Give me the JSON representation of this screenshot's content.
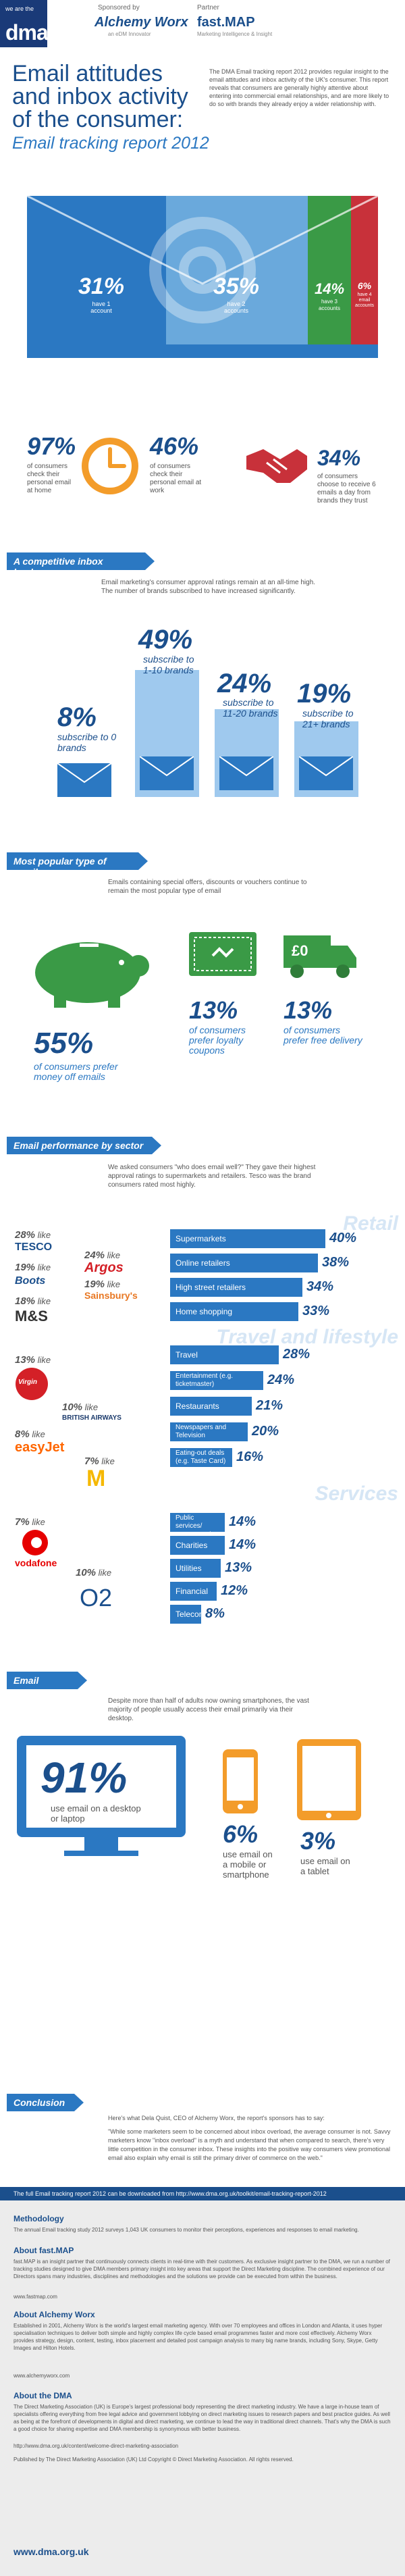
{
  "header": {
    "logo_small": "we are the",
    "logo_big": "dma",
    "sponsored_by": "Sponsored by",
    "sponsor_name": "Alchemy Worx",
    "sponsor_sub": "an eDM Innovator",
    "partner_label": "Partner",
    "partner_name": "fast.MAP",
    "partner_sub": "Marketing Intelligence & Insight"
  },
  "title": {
    "line1": "Email attitudes and inbox activity of the consumer:",
    "line2": "Email tracking report 2012",
    "intro": "The DMA Email tracking report 2012 provides regular insight to the email attitudes and inbox activity of the UK's consumer. This report reveals that consumers are generally highly attentive about entering into commercial email relationships, and are more likely to do so with brands they already enjoy a wider relationship with."
  },
  "accounts": {
    "a1_pct": "31%",
    "a1_label": "have 1 account",
    "a2_pct": "35%",
    "a2_label": "have 2 accounts",
    "a3_pct": "14%",
    "a3_label": "have 3 accounts",
    "a4_pct": "6%",
    "a4_label": "have 4 email accounts",
    "colors": {
      "blue": "#2b78c2",
      "light": "#6aa9dc",
      "green": "#3a9a46",
      "red": "#c8313a"
    }
  },
  "habits": {
    "s1_pct": "97%",
    "s1_label": "of consumers check their personal email at home",
    "s2_pct": "46%",
    "s2_label": "of consumers check their personal email at work",
    "s3_pct": "34%",
    "s3_label": "of consumers choose to receive 6 emails a day from brands they trust"
  },
  "inbox": {
    "heading": "A competitive inbox landscape",
    "intro": "Email marketing's consumer approval ratings remain at an all-time high. The number of brands subscribed to have increased significantly.",
    "b0_pct": "8%",
    "b0_label": "subscribe to 0 brands",
    "b1_pct": "49%",
    "b1_label": "subscribe to 1-10 brands",
    "b2_pct": "24%",
    "b2_label": "subscribe to 11-20 brands",
    "b3_pct": "19%",
    "b3_label": "subscribe to 21+ brands"
  },
  "popular": {
    "heading": "Most popular type of emails",
    "intro": "Emails containing special offers, discounts or vouchers continue to remain the most popular type of email",
    "money_pct": "55%",
    "money_label": "of consumers prefer money off emails",
    "loyalty_pct": "13%",
    "loyalty_label": "of consumers prefer loyalty coupons",
    "delivery_pct": "13%",
    "delivery_label": "of consumers prefer free delivery",
    "pound_icon": "£0"
  },
  "sector": {
    "heading": "Email performance by sector",
    "intro": "We asked consumers \"who does email well?\" They gave their highest approval ratings to supermarkets and retailers. Tesco was the brand consumers rated most highly.",
    "retail_title": "Retail",
    "travel_title": "Travel and lifestyle",
    "services_title": "Services",
    "retail_bars": [
      {
        "label": "Supermarkets",
        "pct": "40%"
      },
      {
        "label": "Online retailers",
        "pct": "38%"
      },
      {
        "label": "High street retailers",
        "pct": "34%"
      },
      {
        "label": "Home shopping",
        "pct": "33%"
      }
    ],
    "travel_bars": [
      {
        "label": "Travel",
        "pct": "28%"
      },
      {
        "label": "Entertainment (e.g. ticketmaster)",
        "pct": "24%"
      },
      {
        "label": "Restaurants",
        "pct": "21%"
      },
      {
        "label": "Newspapers and Television",
        "pct": "20%"
      },
      {
        "label": "Eating-out deals (e.g. Taste Card)",
        "pct": "16%"
      }
    ],
    "services_bars": [
      {
        "label": "Public services/ government",
        "pct": "14%"
      },
      {
        "label": "Charities",
        "pct": "14%"
      },
      {
        "label": "Utilities",
        "pct": "13%"
      },
      {
        "label": "Financial",
        "pct": "12%"
      },
      {
        "label": "Telecoms",
        "pct": "8%"
      }
    ],
    "like_word": "like",
    "brands": {
      "tesco_pct": "28%",
      "tesco": "TESCO",
      "argos_pct": "24%",
      "argos": "Argos",
      "boots_pct": "19%",
      "boots": "Boots",
      "sainsburys_pct": "19%",
      "sainsburys": "Sainsbury's",
      "ms_pct": "18%",
      "ms": "M&S",
      "virgin_pct": "13%",
      "virgin": "Virgin",
      "ba_pct": "10%",
      "ba": "BRITISH AIRWAYS",
      "easyjet_pct": "8%",
      "easyjet": "easyJet",
      "mcd_pct": "7%",
      "mcd": "M",
      "vodafone_pct": "7%",
      "vodafone": "vodafone",
      "o2_pct": "10%",
      "o2": "O2"
    }
  },
  "access": {
    "heading": "Email access",
    "intro": "Despite more than half of adults now owning smartphones, the vast majority of people usually access their email primarily via their desktop.",
    "desktop_pct": "91%",
    "desktop_label": "use email on a desktop or laptop",
    "mobile_pct": "6%",
    "mobile_label": "use email on a mobile or smartphone",
    "tablet_pct": "3%",
    "tablet_label": "use email on a tablet"
  },
  "conclusion": {
    "heading": "Conclusion",
    "text1": "Here's what Dela Quist, CEO of Alchemy Worx, the report's sponsors has to say:",
    "text2": "\"While some marketers seem to be concerned about inbox overload, the average consumer is not. Savvy marketers know \"inbox overload\" is a myth and understand that when compared to search, there's very little competition in the consumer inbox. These insights into the positive way consumers view promotional email also explain why email is still the primary driver of commerce on the web.\""
  },
  "footer": {
    "band": "The full Email tracking report 2012 can be downloaded from http://www.dma.org.uk/toolkit/email-tracking-report-2012",
    "methodology_h": "Methodology",
    "methodology": "The annual Email tracking study 2012 surveys 1,043 UK consumers to monitor their perceptions, experiences and responses to email marketing.",
    "fastmap_h": "About fast.MAP",
    "fastmap": "fast.MAP is an insight partner that continuously connects clients in real-time with their customers. As exclusive insight partner to the DMA, we run a number of tracking studies designed to give DMA members primary insight into key areas that support the Direct Marketing discipline. The combined experience of our Directors spans many industries, disciplines and methodologies and the solutions we provide can be executed from within the business.",
    "fastmap_url": "www.fastmap.com",
    "alchemy_h": "About Alchemy Worx",
    "alchemy": "Established in 2001, Alchemy Worx is the world's largest email marketing agency. With over 70 employees and offices in London and Atlanta, it uses hyper specialisation techniques to deliver both simple and highly complex life cycle based email programmes faster and more cost effectively. Alchemy Worx provides strategy, design, content, testing, inbox placement and detailed post campaign analysis to many big name brands, including Sony, Skype, Getty Images and Hilton Hotels.",
    "alchemy_url": "www.alchemyworx.com",
    "dma_h": "About the DMA",
    "dma": "The Direct Marketing Association (UK) is Europe's largest professional body representing the direct marketing industry. We have a large in-house team of specialists offering everything from free legal advice and government lobbying on direct marketing issues to research papers and best practice guides. As well as being at the forefront of developments in digital and direct marketing, we continue to lead the way in traditional direct channels. That's why the DMA is such a good choice for sharing expertise and DMA membership is synonymous with better business.",
    "dma_link": "http://www.dma.org.uk/content/welcome-direct-marketing-association",
    "published": "Published by The Direct Marketing Association (UK) Ltd Copyright © Direct Marketing Association. All rights reserved.",
    "url": "www.dma.org.uk"
  }
}
